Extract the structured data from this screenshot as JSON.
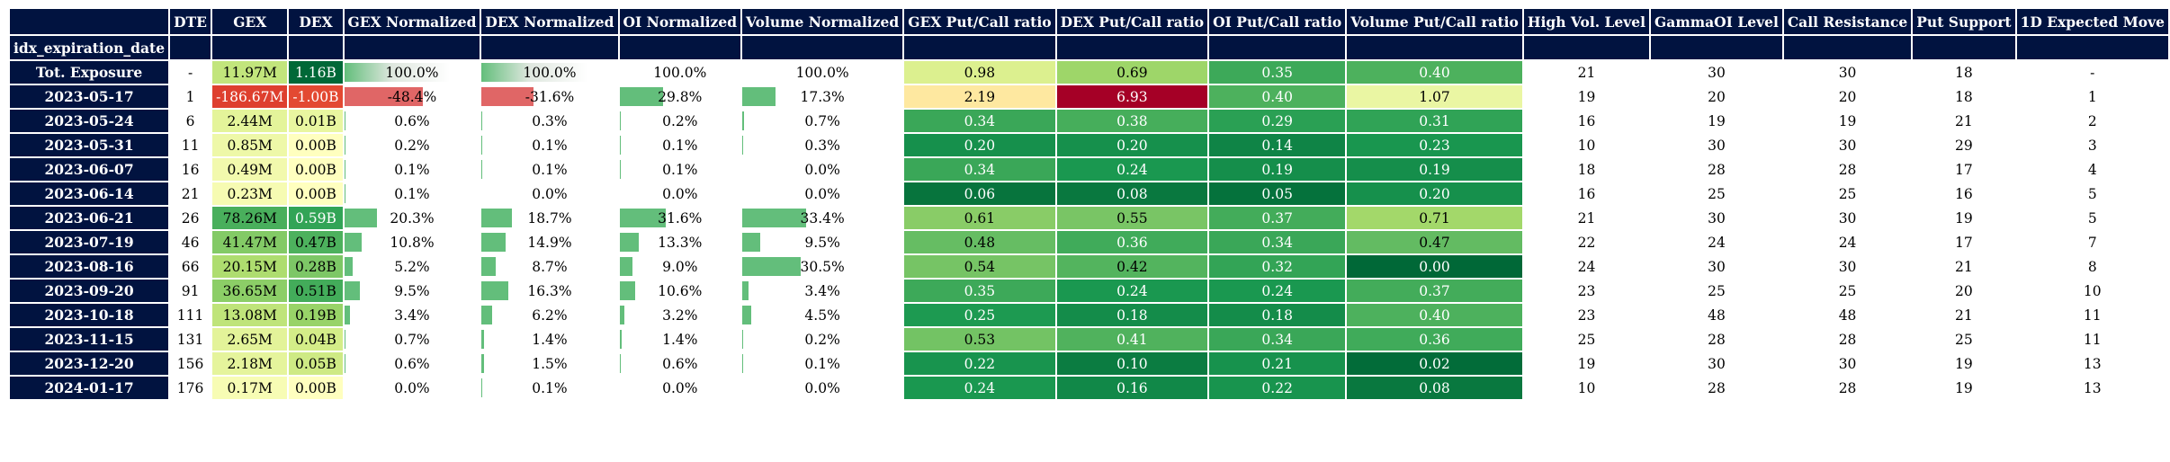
{
  "index_name": "idx_expiration_date",
  "columns": [
    "DTE",
    "GEX",
    "DEX",
    "GEX Normalized",
    "DEX Normalized",
    "OI Normalized",
    "Volume Normalized",
    "GEX Put/Call ratio",
    "DEX Put/Call ratio",
    "OI Put/Call ratio",
    "Volume Put/Call ratio",
    "High Vol. Level",
    "GammaOI Level",
    "Call Resistance",
    "Put Support",
    "1D Expected Move"
  ],
  "rows": [
    {
      "label": "Tot. Exposure",
      "cells": [
        "-",
        "11.97M",
        "1.16B",
        "100.0%",
        "100.0%",
        "100.0%",
        "100.0%",
        "0.98",
        "0.69",
        "0.35",
        "0.40",
        "21",
        "30",
        "30",
        "18",
        "-"
      ]
    },
    {
      "label": "2023-05-17",
      "cells": [
        "1",
        "-186.67M",
        "-1.00B",
        "-48.4%",
        "-31.6%",
        "29.8%",
        "17.3%",
        "2.19",
        "6.93",
        "0.40",
        "1.07",
        "19",
        "20",
        "20",
        "18",
        "1"
      ]
    },
    {
      "label": "2023-05-24",
      "cells": [
        "6",
        "2.44M",
        "0.01B",
        "0.6%",
        "0.3%",
        "0.2%",
        "0.7%",
        "0.34",
        "0.38",
        "0.29",
        "0.31",
        "16",
        "19",
        "19",
        "21",
        "2"
      ]
    },
    {
      "label": "2023-05-31",
      "cells": [
        "11",
        "0.85M",
        "0.00B",
        "0.2%",
        "0.1%",
        "0.1%",
        "0.3%",
        "0.20",
        "0.20",
        "0.14",
        "0.23",
        "10",
        "30",
        "30",
        "29",
        "3"
      ]
    },
    {
      "label": "2023-06-07",
      "cells": [
        "16",
        "0.49M",
        "0.00B",
        "0.1%",
        "0.1%",
        "0.1%",
        "0.0%",
        "0.34",
        "0.24",
        "0.19",
        "0.19",
        "18",
        "28",
        "28",
        "17",
        "4"
      ]
    },
    {
      "label": "2023-06-14",
      "cells": [
        "21",
        "0.23M",
        "0.00B",
        "0.1%",
        "0.0%",
        "0.0%",
        "0.0%",
        "0.06",
        "0.08",
        "0.05",
        "0.20",
        "16",
        "25",
        "25",
        "16",
        "5"
      ]
    },
    {
      "label": "2023-06-21",
      "cells": [
        "26",
        "78.26M",
        "0.59B",
        "20.3%",
        "18.7%",
        "31.6%",
        "33.4%",
        "0.61",
        "0.55",
        "0.37",
        "0.71",
        "21",
        "30",
        "30",
        "19",
        "5"
      ]
    },
    {
      "label": "2023-07-19",
      "cells": [
        "46",
        "41.47M",
        "0.47B",
        "10.8%",
        "14.9%",
        "13.3%",
        "9.5%",
        "0.48",
        "0.36",
        "0.34",
        "0.47",
        "22",
        "24",
        "24",
        "17",
        "7"
      ]
    },
    {
      "label": "2023-08-16",
      "cells": [
        "66",
        "20.15M",
        "0.28B",
        "5.2%",
        "8.7%",
        "9.0%",
        "30.5%",
        "0.54",
        "0.42",
        "0.32",
        "0.00",
        "24",
        "30",
        "30",
        "21",
        "8"
      ]
    },
    {
      "label": "2023-09-20",
      "cells": [
        "91",
        "36.65M",
        "0.51B",
        "9.5%",
        "16.3%",
        "10.6%",
        "3.4%",
        "0.35",
        "0.24",
        "0.24",
        "0.37",
        "23",
        "25",
        "25",
        "20",
        "10"
      ]
    },
    {
      "label": "2023-10-18",
      "cells": [
        "111",
        "13.08M",
        "0.19B",
        "3.4%",
        "6.2%",
        "3.2%",
        "4.5%",
        "0.25",
        "0.18",
        "0.18",
        "0.40",
        "23",
        "48",
        "48",
        "21",
        "11"
      ]
    },
    {
      "label": "2023-11-15",
      "cells": [
        "131",
        "2.65M",
        "0.04B",
        "0.7%",
        "1.4%",
        "1.4%",
        "0.2%",
        "0.53",
        "0.41",
        "0.34",
        "0.36",
        "25",
        "28",
        "28",
        "25",
        "11"
      ]
    },
    {
      "label": "2023-12-20",
      "cells": [
        "156",
        "2.18M",
        "0.05B",
        "0.6%",
        "1.5%",
        "0.6%",
        "0.1%",
        "0.22",
        "0.10",
        "0.21",
        "0.02",
        "19",
        "30",
        "30",
        "19",
        "13"
      ]
    },
    {
      "label": "2024-01-17",
      "cells": [
        "176",
        "0.17M",
        "0.00B",
        "0.0%",
        "0.1%",
        "0.0%",
        "0.0%",
        "0.24",
        "0.16",
        "0.22",
        "0.08",
        "10",
        "28",
        "28",
        "19",
        "13"
      ]
    }
  ],
  "colors": {
    "header_bg": "#011340",
    "header_text": "#ffffff",
    "bar_positive": "#63be7b",
    "bar_negative": "#e06666",
    "light_text": "#ffffff",
    "dark_text": "#000000"
  }
}
